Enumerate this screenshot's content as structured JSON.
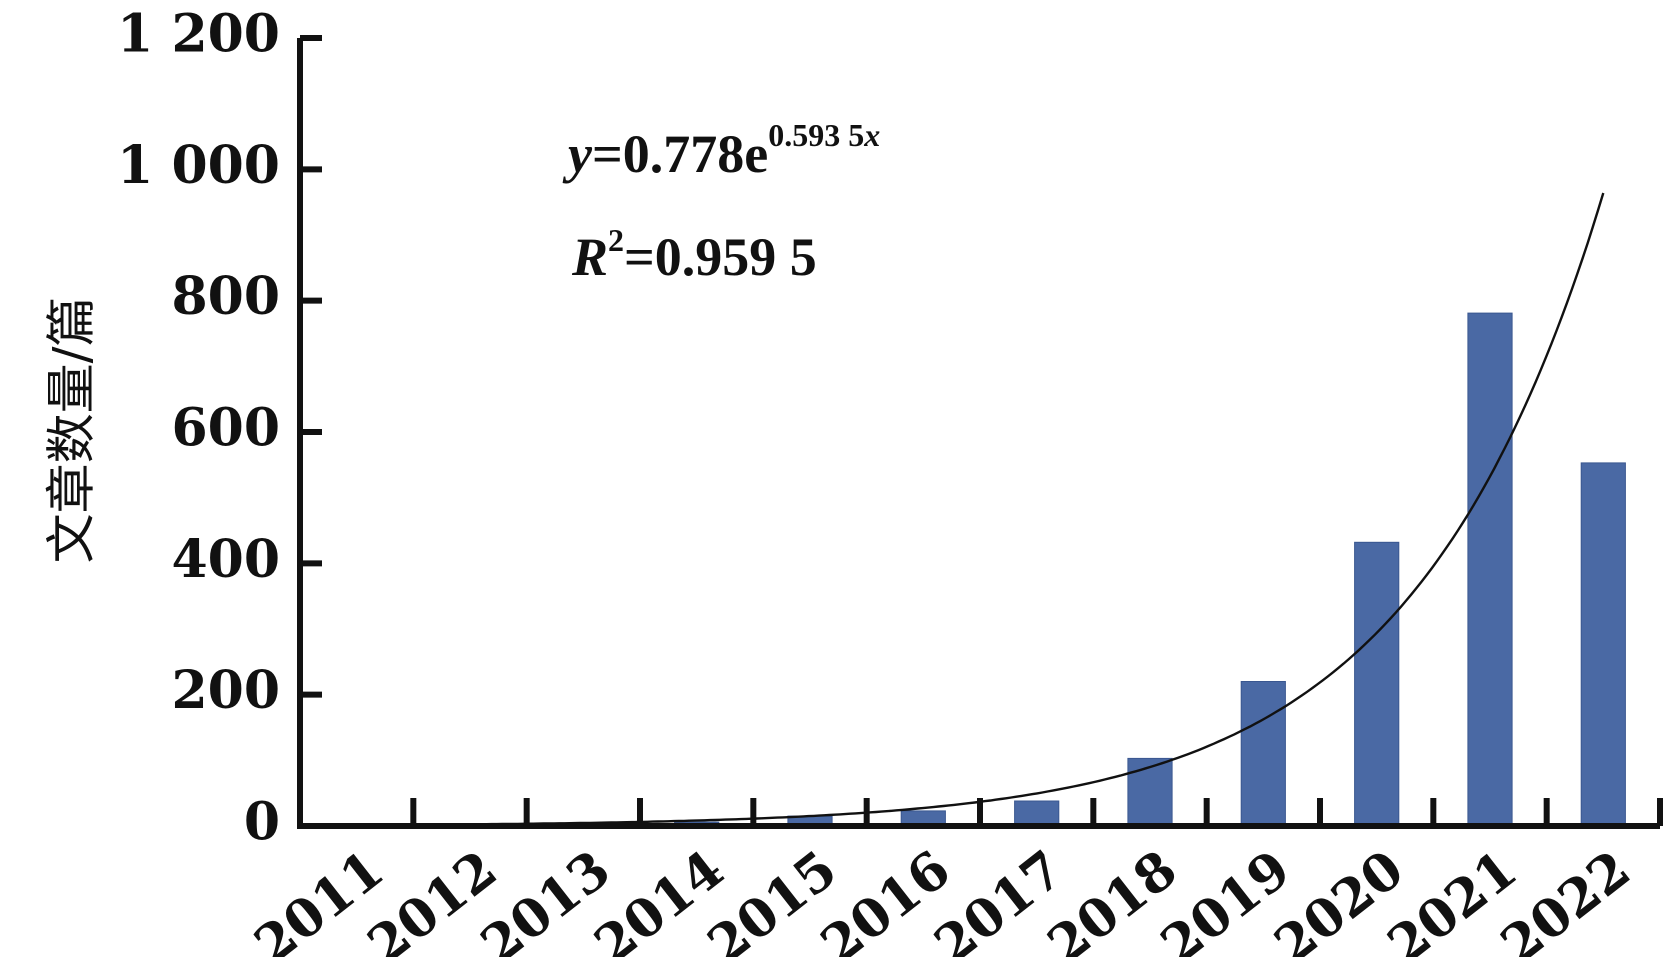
{
  "chart_data": {
    "type": "bar",
    "categories": [
      "2011",
      "2012",
      "2013",
      "2014",
      "2015",
      "2016",
      "2017",
      "2018",
      "2019",
      "2020",
      "2021",
      "2022"
    ],
    "values": [
      1,
      2,
      4,
      6,
      15,
      23,
      38,
      103,
      220,
      432,
      781,
      553
    ],
    "ylabel": "文章数量/篇",
    "xlabel": "",
    "ylim": [
      0,
      1200
    ],
    "yticks": [
      0,
      200,
      400,
      600,
      800,
      1000,
      1200
    ],
    "ytick_labels": [
      "0",
      "200",
      "400",
      "600",
      "800",
      "1 000",
      "1 200"
    ],
    "grid": false,
    "bar_color": "#4a69a4",
    "trendline": {
      "type": "exponential",
      "a": 0.778,
      "b": 0.5935,
      "equation": {
        "y_var": "y",
        "coef_text": "=0.778e",
        "exponent_num": "0.593 5",
        "exponent_var": "x"
      },
      "r2": {
        "var": "R",
        "power": "2",
        "value_text": "=0.959 5"
      }
    }
  }
}
